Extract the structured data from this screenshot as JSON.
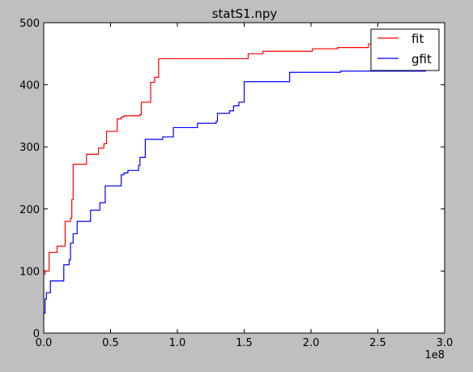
{
  "chart_data": {
    "type": "line",
    "title": "statS1.npy",
    "xlabel": "",
    "ylabel": "",
    "x_offset_label": "1e8",
    "xlim": [
      0,
      3.0
    ],
    "ylim": [
      0,
      500
    ],
    "x_ticks": [
      0.0,
      0.5,
      1.0,
      1.5,
      2.0,
      2.5,
      3.0
    ],
    "x_tick_labels": [
      "0.0",
      "0.5",
      "1.0",
      "1.5",
      "2.0",
      "2.5",
      "3.0"
    ],
    "y_ticks": [
      0,
      100,
      200,
      300,
      400,
      500
    ],
    "y_tick_labels": [
      "0",
      "100",
      "200",
      "300",
      "400",
      "500"
    ],
    "grid": false,
    "legend_position": "top-right",
    "series": [
      {
        "name": "fit",
        "color": "#ff0000",
        "points": [
          [
            0.0,
            95
          ],
          [
            0.01,
            100
          ],
          [
            0.04,
            130
          ],
          [
            0.1,
            140
          ],
          [
            0.16,
            180
          ],
          [
            0.2,
            185
          ],
          [
            0.21,
            215
          ],
          [
            0.22,
            272
          ],
          [
            0.32,
            288
          ],
          [
            0.41,
            298
          ],
          [
            0.45,
            305
          ],
          [
            0.47,
            325
          ],
          [
            0.55,
            345
          ],
          [
            0.58,
            348
          ],
          [
            0.6,
            350
          ],
          [
            0.72,
            352
          ],
          [
            0.73,
            372
          ],
          [
            0.8,
            392
          ],
          [
            0.8,
            404
          ],
          [
            0.83,
            412
          ],
          [
            0.86,
            442
          ],
          [
            1.53,
            450
          ],
          [
            1.64,
            454
          ],
          [
            2.01,
            458
          ],
          [
            2.2,
            460
          ],
          [
            2.43,
            466
          ],
          [
            2.83,
            466
          ]
        ]
      },
      {
        "name": "gfit",
        "color": "#0000ff",
        "points": [
          [
            0.0,
            32
          ],
          [
            0.01,
            55
          ],
          [
            0.02,
            65
          ],
          [
            0.05,
            84
          ],
          [
            0.15,
            110
          ],
          [
            0.19,
            118
          ],
          [
            0.2,
            145
          ],
          [
            0.22,
            160
          ],
          [
            0.25,
            180
          ],
          [
            0.35,
            198
          ],
          [
            0.42,
            210
          ],
          [
            0.46,
            237
          ],
          [
            0.58,
            255
          ],
          [
            0.6,
            258
          ],
          [
            0.63,
            262
          ],
          [
            0.71,
            270
          ],
          [
            0.72,
            283
          ],
          [
            0.76,
            312
          ],
          [
            0.89,
            316
          ],
          [
            0.97,
            331
          ],
          [
            1.15,
            338
          ],
          [
            1.29,
            341
          ],
          [
            1.3,
            354
          ],
          [
            1.39,
            358
          ],
          [
            1.42,
            366
          ],
          [
            1.46,
            372
          ],
          [
            1.5,
            405
          ],
          [
            1.84,
            420
          ],
          [
            2.22,
            422
          ],
          [
            2.86,
            422
          ]
        ]
      }
    ]
  }
}
